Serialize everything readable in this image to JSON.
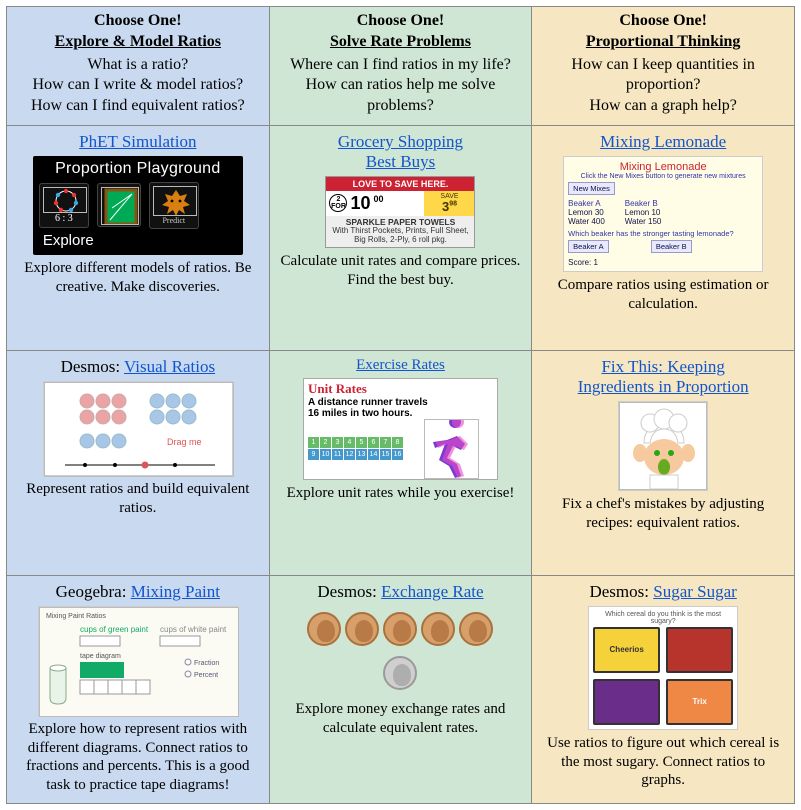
{
  "columns": [
    {
      "lead": "Choose One!",
      "topic": "Explore & Model Ratios",
      "questions": [
        "What is a ratio?",
        "How can I write & model ratios?",
        "How can I find equivalent ratios?"
      ],
      "bg": "#c9daf0"
    },
    {
      "lead": "Choose One!",
      "topic": "Solve Rate Problems",
      "questions": [
        "Where can I find ratios in my life?",
        "How can ratios help me solve problems?"
      ],
      "bg": "#d0e6d4"
    },
    {
      "lead": "Choose One!",
      "topic": "Proportional Thinking",
      "questions": [
        "How can I keep quantities in proportion?",
        "How can a graph help?"
      ],
      "bg": "#f6e7c2"
    }
  ],
  "cells": {
    "r1c1": {
      "prefix": "",
      "link": "PhET Simulation",
      "desc": "Explore different models of ratios. Be creative.  Make discoveries.",
      "pp": {
        "title": "Proportion Playground",
        "ratio": "6 : 3",
        "predict": "Predict",
        "explore": "Explore"
      }
    },
    "r1c2": {
      "prefix": "",
      "link_l1": "Grocery Shopping",
      "link_l2": "Best Buys",
      "desc": "Calculate unit rates and compare prices.  Find the best buy.",
      "tag": {
        "banner": "LOVE TO SAVE HERE.",
        "two_for": "2 FOR",
        "price": "10",
        "cents": "00",
        "save": "SAVE",
        "save_amt": "3",
        "save_cents": "98",
        "prod": "SPARKLE PAPER TOWELS",
        "sub": "With Thirst Pockets, Prints, Full Sheet, Big Rolls, 2-Ply, 6 roll pkg."
      }
    },
    "r1c3": {
      "prefix": "",
      "link": "Mixing Lemonade",
      "desc": "Compare ratios using estimation or calculation.",
      "lem": {
        "title": "Mixing Lemonade",
        "sub": "Click the New Mixes button to generate new mixtures",
        "new_mixes": "New Mixes",
        "a_label": "Beaker A",
        "b_label": "Beaker B",
        "a1": "Lemon 30",
        "a2": "Water 400",
        "b1": "Lemon 10",
        "b2": "Water 150",
        "q": "Which beaker has the stronger tasting lemonade?",
        "btn_a": "Beaker A",
        "btn_b": "Beaker B",
        "score": "Score: 1"
      }
    },
    "r2c1": {
      "prefix": "Desmos:  ",
      "link": "Visual Ratios",
      "desc": "Represent ratios and build equivalent ratios.",
      "dots": {
        "red_count": 6,
        "blue_count": 6,
        "drag": "Drag me",
        "red_color": "#e99",
        "blue_color": "#9bd"
      }
    },
    "r2c2": {
      "prefix": "",
      "link": "Exercise Rates",
      "desc": "Explore unit rates while you exercise!",
      "ur": {
        "title": "Unit Rates",
        "sub1": "A distance runner travels",
        "sub2": "16 miles in two hours.",
        "row1": [
          "1",
          "2",
          "3",
          "4",
          "5",
          "6",
          "7",
          "8"
        ],
        "row2": [
          "9",
          "10",
          "11",
          "12",
          "13",
          "14",
          "15",
          "16"
        ],
        "row1_color": "#6b6",
        "row2_color": "#49c"
      }
    },
    "r2c3": {
      "prefix": "",
      "link_l1": "Fix This:  Keeping",
      "link_l2": "Ingredients in Proportion",
      "desc": "Fix a chef's mistakes by adjusting recipes:  equivalent ratios."
    },
    "r3c1": {
      "prefix": "Geogebra: ",
      "link": "Mixing Paint",
      "desc": "Explore how to represent ratios with different diagrams. Connect ratios to fractions and percents.  This is a good task to practice tape diagrams!"
    },
    "r3c2": {
      "prefix": "Desmos: ",
      "link": "Exchange Rate",
      "desc": "Explore money exchange rates and calculate equivalent rates.",
      "coins": {
        "top_count": 5,
        "copper": "#d7a06a",
        "gray": "#cfcfcf"
      }
    },
    "r3c3": {
      "prefix": "Desmos:  ",
      "link": "Sugar Sugar",
      "desc": "Use ratios to figure out which cereal is the most sugary.  Connect ratios to graphs.",
      "cereal": {
        "caption": "Which cereal do you think is the most sugary?",
        "b1": {
          "name": "Cheerios",
          "bg": "#f5d13a",
          "fg": "#8a1"
        },
        "b2": {
          "name": "",
          "bg": "#b7342c"
        },
        "b3": {
          "name": "",
          "bg": "#6a2e8a"
        },
        "b4": {
          "name": "Trix",
          "bg": "#e84"
        }
      }
    }
  },
  "link_color": "#1155cc"
}
